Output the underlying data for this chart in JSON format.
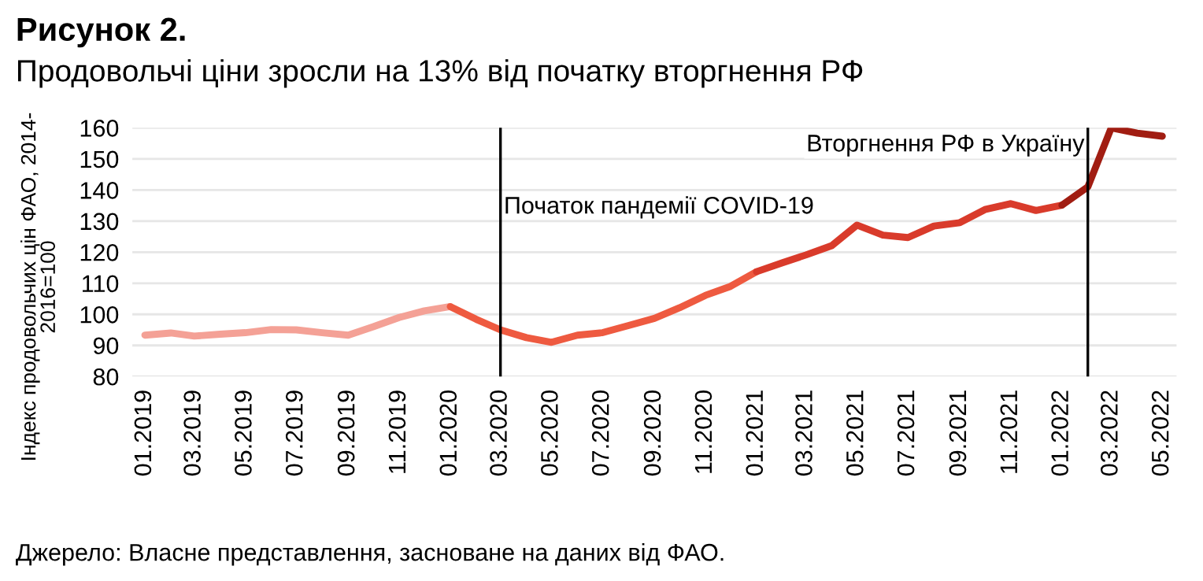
{
  "chart_data": {
    "type": "line",
    "title": "Рисунок 2.",
    "subtitle": "Продовольчі ціни зросли на 13% від початку вторгнення РФ",
    "ylabel": "Індекс продовольчих цін ФАО, 2014-\n2016=100",
    "annotations": [
      "Джерело: Власне представлення, засноване на даних від ФАО."
    ],
    "series": [
      {
        "color": "#f4a196",
        "x": [
          "2019-01",
          "2019-02",
          "2019-03",
          "2019-04",
          "2019-05",
          "2019-06",
          "2019-07",
          "2019-08",
          "2019-09",
          "2019-10",
          "2019-11",
          "2019-12",
          "2020-01"
        ],
        "values": [
          93.3,
          94.0,
          93.0,
          93.6,
          94.1,
          95.1,
          95.0,
          94.1,
          93.3,
          96.0,
          99.0,
          101.1,
          102.5
        ]
      },
      {
        "color": "#ee5a40",
        "x": [
          "2020-01",
          "2020-02",
          "2020-03",
          "2020-04",
          "2020-05",
          "2020-06",
          "2020-07",
          "2020-08",
          "2020-09",
          "2020-10",
          "2020-11",
          "2020-12",
          "2021-01"
        ],
        "values": [
          102.5,
          98.4,
          95.0,
          92.5,
          91.0,
          93.3,
          94.1,
          96.4,
          98.7,
          102.1,
          106.1,
          109.0,
          113.7
        ]
      },
      {
        "color": "#d93b2b",
        "x": [
          "2021-01",
          "2021-02",
          "2021-03",
          "2021-04",
          "2021-05",
          "2021-06",
          "2021-07",
          "2021-08",
          "2021-09",
          "2021-10",
          "2021-11",
          "2021-12",
          "2022-01"
        ],
        "values": [
          113.7,
          116.6,
          119.1,
          122.1,
          128.7,
          125.5,
          124.7,
          128.4,
          129.5,
          133.7,
          135.6,
          133.4,
          135.1
        ]
      },
      {
        "color": "#a11d12",
        "x": [
          "2022-01",
          "2022-02",
          "2022-03",
          "2022-04",
          "2022-05"
        ],
        "values": [
          135.1,
          141.0,
          160.0,
          158.3,
          157.3
        ]
      }
    ],
    "xlim": [
      "2018-12-17",
      "2022-05-18"
    ],
    "xticks": [
      {
        "value": "2019-01",
        "label": "01.2019"
      },
      {
        "value": "2019-03",
        "label": "03.2019"
      },
      {
        "value": "2019-05",
        "label": "05.2019"
      },
      {
        "value": "2019-07",
        "label": "07.2019"
      },
      {
        "value": "2019-09",
        "label": "09.2019"
      },
      {
        "value": "2019-11",
        "label": "11.2019"
      },
      {
        "value": "2020-01",
        "label": "01.2020"
      },
      {
        "value": "2020-03",
        "label": "03.2020"
      },
      {
        "value": "2020-05",
        "label": "05.2020"
      },
      {
        "value": "2020-07",
        "label": "07.2020"
      },
      {
        "value": "2020-09",
        "label": "09.2020"
      },
      {
        "value": "2020-11",
        "label": "11.2020"
      },
      {
        "value": "2021-01",
        "label": "01.2021"
      },
      {
        "value": "2021-03",
        "label": "03.2021"
      },
      {
        "value": "2021-05",
        "label": "05.2021"
      },
      {
        "value": "2021-07",
        "label": "07.2021"
      },
      {
        "value": "2021-09",
        "label": "09.2021"
      },
      {
        "value": "2021-11",
        "label": "11.2021"
      },
      {
        "value": "2022-01",
        "label": "01.2022"
      },
      {
        "value": "2022-03",
        "label": "03.2022"
      },
      {
        "value": "2022-05",
        "label": "05.2022"
      }
    ],
    "ylim": [
      80,
      160
    ],
    "yticks": [
      80,
      90,
      100,
      110,
      120,
      130,
      140,
      150,
      160
    ],
    "ref_lines": [
      {
        "axis": "x",
        "value": "2020-03",
        "label": "Початок пандемії COVID-19",
        "color": "#000000"
      },
      {
        "axis": "x",
        "value": "2022-02",
        "label": "Вторгнення РФ в Україну",
        "color": "#000000"
      }
    ],
    "grid": "y",
    "legend": false,
    "marker": "none",
    "line_style": "solid"
  }
}
